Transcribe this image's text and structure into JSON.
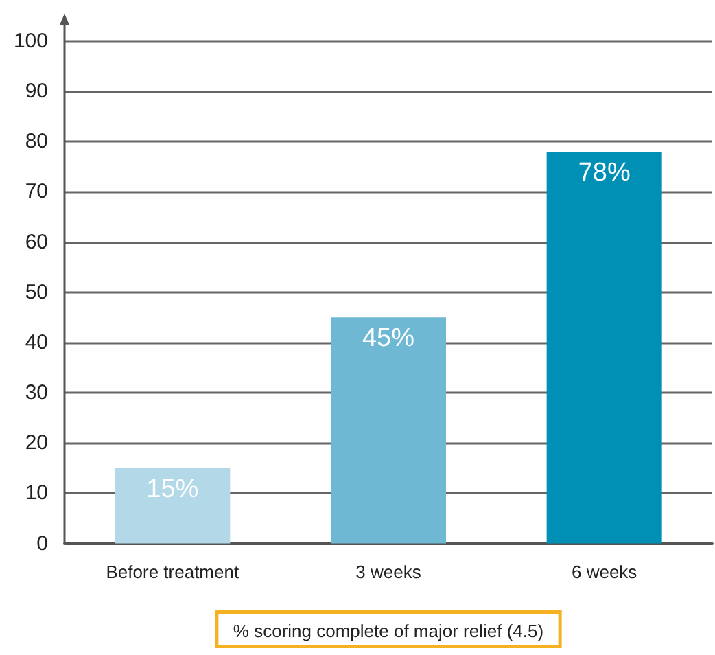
{
  "chart_data": {
    "type": "bar",
    "xlabel": "% scoring complete of major relief (4.5)",
    "categories": [
      "Before treatment",
      "3 weeks",
      "6 weeks"
    ],
    "values": [
      15,
      45,
      78
    ],
    "colors": [
      "#b3d9e8",
      "#6fb8d4",
      "#008fb5"
    ],
    "value_labels": [
      "15%",
      "45%",
      "78%"
    ],
    "ylim": [
      0,
      100
    ],
    "yticks": [
      0,
      10,
      20,
      30,
      40,
      50,
      60,
      70,
      80,
      90,
      100
    ],
    "grid": "y"
  }
}
